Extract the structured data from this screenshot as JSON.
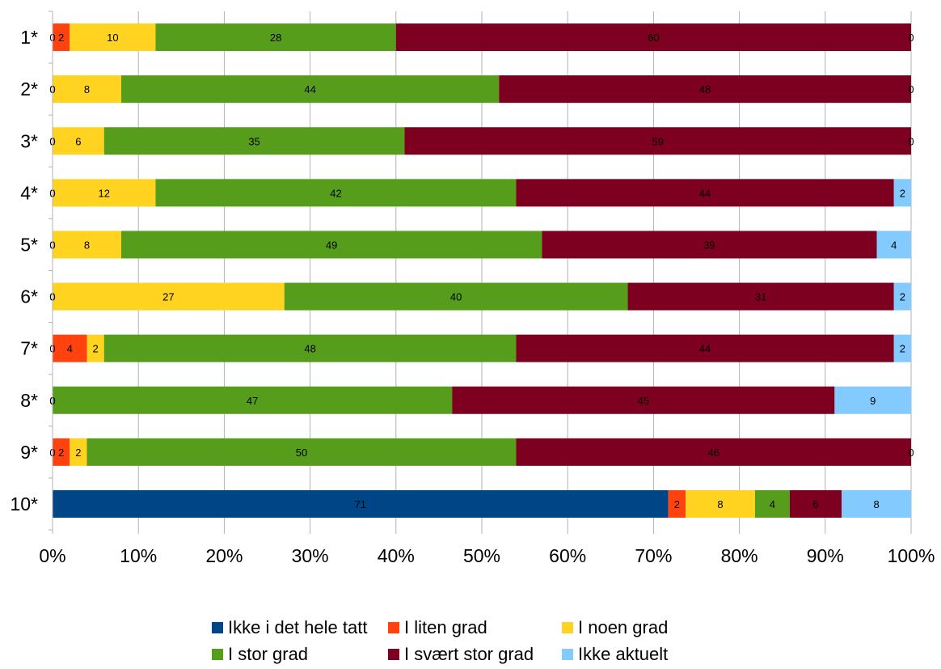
{
  "chart_data": {
    "type": "bar",
    "orientation": "horizontal",
    "stacked": "percent",
    "categories": [
      "1*",
      "2*",
      "3*",
      "4*",
      "5*",
      "6*",
      "7*",
      "8*",
      "9*",
      "10*"
    ],
    "series": [
      {
        "name": "Ikke i det hele tatt",
        "color": "#004586",
        "values": [
          0,
          0,
          0,
          0,
          0,
          0,
          0,
          0,
          0,
          71
        ]
      },
      {
        "name": "I liten grad",
        "color": "#ff420e",
        "values": [
          2,
          0,
          0,
          0,
          0,
          0,
          4,
          0,
          2,
          2
        ]
      },
      {
        "name": "I noen grad",
        "color": "#ffd320",
        "values": [
          10,
          8,
          6,
          12,
          8,
          27,
          2,
          0,
          2,
          8
        ]
      },
      {
        "name": "I stor grad",
        "color": "#579d1c",
        "values": [
          28,
          44,
          35,
          42,
          49,
          40,
          48,
          47,
          50,
          4
        ]
      },
      {
        "name": "I svært stor grad",
        "color": "#7e0021",
        "values": [
          60,
          48,
          59,
          44,
          39,
          31,
          44,
          45,
          46,
          6
        ]
      },
      {
        "name": "Ikke aktuelt",
        "color": "#83caff",
        "values": [
          0,
          0,
          0,
          2,
          4,
          2,
          2,
          9,
          0,
          8
        ]
      }
    ],
    "xticks": [
      "0%",
      "10%",
      "20%",
      "30%",
      "40%",
      "50%",
      "60%",
      "70%",
      "80%",
      "90%",
      "100%"
    ],
    "xlim": [
      0,
      100
    ],
    "grid": true,
    "legend": "bottom",
    "data_labels": true
  }
}
